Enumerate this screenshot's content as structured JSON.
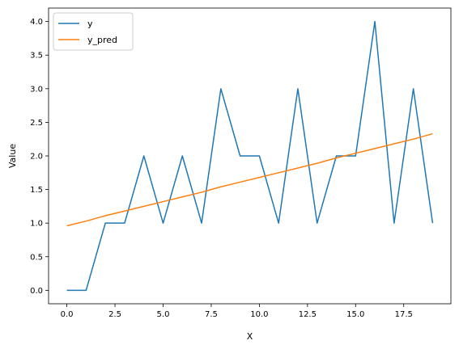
{
  "chart_data": {
    "type": "line",
    "title": "",
    "xlabel": "X",
    "ylabel": "Value",
    "xlim": [
      -0.95,
      19.95
    ],
    "ylim": [
      -0.2,
      4.2
    ],
    "grid": false,
    "legend_position": "top-left",
    "x_ticks": [
      "0.0",
      "2.5",
      "5.0",
      "7.5",
      "10.0",
      "12.5",
      "15.0",
      "17.5"
    ],
    "x_tick_values": [
      0,
      2.5,
      5,
      7.5,
      10,
      12.5,
      15,
      17.5
    ],
    "y_ticks": [
      "0.0",
      "0.5",
      "1.0",
      "1.5",
      "2.0",
      "2.5",
      "3.0",
      "3.5",
      "4.0"
    ],
    "y_tick_values": [
      0,
      0.5,
      1,
      1.5,
      2,
      2.5,
      3,
      3.5,
      4
    ],
    "x": [
      0,
      1,
      2,
      3,
      4,
      5,
      6,
      7,
      8,
      9,
      10,
      11,
      12,
      13,
      14,
      15,
      16,
      17,
      18,
      19
    ],
    "series": [
      {
        "name": "y",
        "color": "#1f77b4",
        "values": [
          0,
          0,
          1,
          1,
          2,
          1,
          2,
          1,
          3,
          2,
          2,
          1,
          3,
          1,
          2,
          2,
          4,
          1,
          3,
          1
        ]
      },
      {
        "name": "y_pred",
        "color": "#ff7f0e",
        "values": [
          0.96,
          1.03,
          1.11,
          1.18,
          1.25,
          1.32,
          1.39,
          1.46,
          1.54,
          1.61,
          1.68,
          1.75,
          1.82,
          1.89,
          1.97,
          2.04,
          2.11,
          2.18,
          2.25,
          2.33
        ]
      }
    ]
  }
}
